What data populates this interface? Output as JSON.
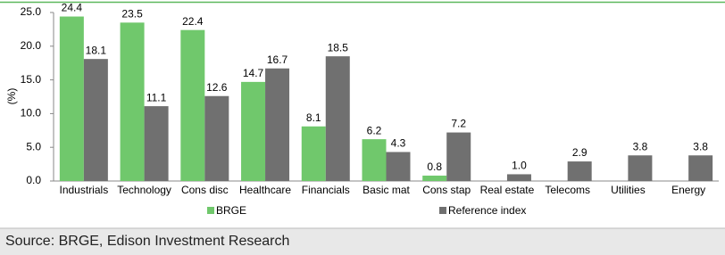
{
  "chart_data": {
    "type": "bar",
    "y_label": "(%)",
    "categories": [
      "Industrials",
      "Technology",
      "Cons disc",
      "Healthcare",
      "Financials",
      "Basic mat",
      "Cons stap",
      "Real estate",
      "Telecoms",
      "Utilities",
      "Energy"
    ],
    "series": [
      {
        "name": "BRGE",
        "color": "#70c86c",
        "values": [
          24.4,
          23.5,
          22.4,
          14.7,
          8.1,
          6.2,
          0.8,
          null,
          null,
          null,
          null
        ]
      },
      {
        "name": "Reference index",
        "color": "#707070",
        "values": [
          18.1,
          11.1,
          12.6,
          16.7,
          18.5,
          4.3,
          7.2,
          1,
          2.9,
          3.8,
          3.8
        ],
        "value_labels": [
          "18.1",
          "11.1",
          "12.6",
          "16.7",
          "18.5",
          "4.3",
          "7.2",
          "1.0",
          "2.9",
          "3.8",
          "3.8"
        ]
      }
    ],
    "ylim": [
      0,
      25
    ],
    "yticks": [
      {
        "value": 0,
        "label": "0.0"
      },
      {
        "value": 5,
        "label": "5.0"
      },
      {
        "value": 10,
        "label": "10.0"
      },
      {
        "value": 15,
        "label": "15.0"
      },
      {
        "value": 20,
        "label": "20.0"
      },
      {
        "value": 25,
        "label": "25.0"
      }
    ],
    "grid": false,
    "source": "Source: BRGE, Edison Investment Research"
  }
}
